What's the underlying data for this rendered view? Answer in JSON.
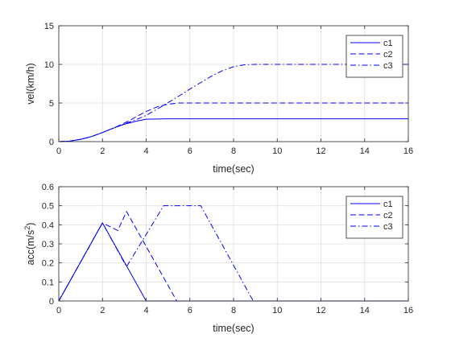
{
  "chart_data": [
    {
      "type": "line",
      "title": "",
      "xlabel": "time(sec)",
      "ylabel": "vel(km/h)",
      "xlim": [
        0,
        16
      ],
      "ylim": [
        0,
        15
      ],
      "xticks": [
        0,
        2,
        4,
        6,
        8,
        10,
        12,
        14,
        16
      ],
      "yticks": [
        0,
        5,
        10,
        15
      ],
      "grid": true,
      "legend_position": "top-right",
      "series": [
        {
          "name": "c1",
          "style": "solid",
          "color": "#0000ff",
          "x": [
            0,
            0.5,
            1,
            1.5,
            2,
            2.5,
            3,
            3.5,
            4,
            5,
            6,
            8,
            10,
            12,
            14,
            16
          ],
          "y": [
            0,
            0.07,
            0.3,
            0.66,
            1.18,
            1.75,
            2.25,
            2.62,
            2.9,
            2.95,
            2.95,
            2.95,
            2.95,
            2.95,
            2.95,
            2.95
          ]
        },
        {
          "name": "c2",
          "style": "dashed",
          "color": "#0000ff",
          "x": [
            0,
            0.5,
            1,
            1.5,
            2,
            2.5,
            3,
            3.5,
            4,
            4.5,
            5,
            5.5,
            6,
            8,
            10,
            12,
            14,
            16
          ],
          "y": [
            0,
            0.07,
            0.3,
            0.66,
            1.18,
            1.75,
            2.4,
            3.15,
            3.9,
            4.5,
            4.85,
            5.0,
            5.0,
            5.0,
            5.0,
            5.0,
            5.0,
            5.0
          ]
        },
        {
          "name": "c3",
          "style": "dashdot",
          "color": "#0000ff",
          "x": [
            0,
            0.5,
            1,
            1.5,
            2,
            2.5,
            3,
            3.5,
            4,
            4.5,
            5,
            5.5,
            6,
            6.5,
            7,
            7.5,
            8,
            8.5,
            9,
            10,
            12,
            14,
            16
          ],
          "y": [
            0,
            0.07,
            0.3,
            0.66,
            1.18,
            1.75,
            2.3,
            2.8,
            3.4,
            4.2,
            5.05,
            5.9,
            6.8,
            7.65,
            8.5,
            9.2,
            9.7,
            9.95,
            10.0,
            10.0,
            10.0,
            10.0,
            10.0
          ]
        }
      ]
    },
    {
      "type": "line",
      "title": "",
      "xlabel": "time(sec)",
      "ylabel": "acc(m/s",
      "ylabel_superscript": "2",
      "ylabel_suffix": ")",
      "xlim": [
        0,
        16
      ],
      "ylim": [
        0,
        0.6
      ],
      "xticks": [
        0,
        2,
        4,
        6,
        8,
        10,
        12,
        14,
        16
      ],
      "yticks": [
        0,
        0.1,
        0.2,
        0.3,
        0.4,
        0.5,
        0.6
      ],
      "grid": true,
      "legend_position": "top-right",
      "series": [
        {
          "name": "c1",
          "style": "solid",
          "color": "#0000ff",
          "x": [
            0,
            2,
            4,
            16
          ],
          "y": [
            0,
            0.41,
            0,
            0
          ]
        },
        {
          "name": "c2",
          "style": "dashed",
          "color": "#0000ff",
          "x": [
            0,
            2,
            2.7,
            3.1,
            5.4,
            16
          ],
          "y": [
            0,
            0.41,
            0.37,
            0.47,
            0,
            0
          ]
        },
        {
          "name": "c3",
          "style": "dashdot",
          "color": "#0000ff",
          "x": [
            0,
            2,
            3.1,
            4.8,
            6.5,
            8.9,
            16
          ],
          "y": [
            0,
            0.41,
            0.18,
            0.5,
            0.5,
            0,
            0
          ]
        }
      ]
    }
  ]
}
